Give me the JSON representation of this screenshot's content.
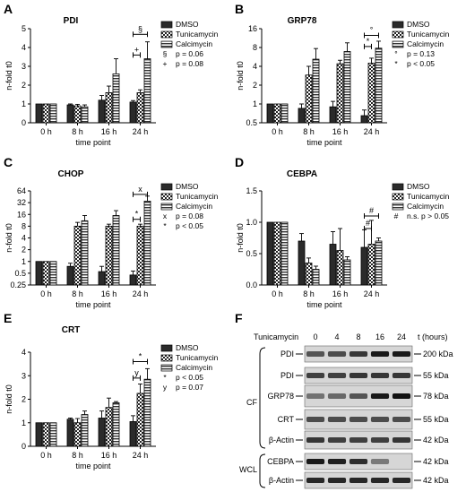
{
  "panel_letters": [
    "A",
    "B",
    "C",
    "D",
    "E",
    "F"
  ],
  "patterns": {
    "DMSO": "solid-dark",
    "Tunicamycin": "checker",
    "Calcimycin": "horizontal-stripes"
  },
  "chart_data": [
    {
      "id": "A",
      "type": "bar",
      "title": "PDI",
      "xlabel": "time point",
      "ylabel": "n-fold t0",
      "scale": "linear",
      "ylim": [
        0,
        5
      ],
      "yticks": [
        "0",
        "1",
        "2",
        "3",
        "4",
        "5"
      ],
      "categories": [
        "0 h",
        "8 h",
        "16 h",
        "24 h"
      ],
      "series": [
        {
          "name": "DMSO",
          "values": [
            1.0,
            0.95,
            1.2,
            1.1
          ],
          "errors": [
            0.02,
            0.05,
            0.25,
            0.08
          ]
        },
        {
          "name": "Tunicamycin",
          "values": [
            1.0,
            0.9,
            1.6,
            1.6
          ],
          "errors": [
            0.02,
            0.08,
            0.35,
            0.15
          ]
        },
        {
          "name": "Calcimycin",
          "values": [
            1.0,
            0.85,
            2.6,
            3.4
          ],
          "errors": [
            0.02,
            0.1,
            0.8,
            0.9
          ]
        }
      ],
      "brackets": [
        {
          "symbol": "§",
          "from": 0,
          "to": 2,
          "level": 4.7
        },
        {
          "symbol": "+",
          "from": 0,
          "to": 1,
          "level": 3.6
        }
      ],
      "notes": [
        {
          "symbol": "§",
          "text": "p = 0.06"
        },
        {
          "symbol": "+",
          "text": "p = 0.08"
        }
      ]
    },
    {
      "id": "B",
      "type": "bar",
      "title": "GRP78",
      "xlabel": "time point",
      "ylabel": "n-fold t0",
      "scale": "log2",
      "ylim": [
        0.5,
        16
      ],
      "yticks": [
        "0.5",
        "1",
        "2",
        "4",
        "8",
        "16"
      ],
      "categories": [
        "0 h",
        "8 h",
        "16 h",
        "24 h"
      ],
      "series": [
        {
          "name": "DMSO",
          "values": [
            1.0,
            0.85,
            0.9,
            0.65
          ],
          "errors": [
            0.02,
            0.15,
            0.2,
            0.15
          ]
        },
        {
          "name": "Tunicamycin",
          "values": [
            1.0,
            2.9,
            4.4,
            4.5
          ],
          "errors": [
            0.02,
            1.1,
            0.6,
            0.9
          ]
        },
        {
          "name": "Calcimycin",
          "values": [
            1.0,
            5.2,
            6.9,
            7.8
          ],
          "errors": [
            0.02,
            2.5,
            2.6,
            2.3
          ]
        }
      ],
      "brackets": [
        {
          "symbol": "°",
          "from": 0,
          "to": 2,
          "level": 12.5
        },
        {
          "symbol": "*",
          "from": 0,
          "to": 1,
          "level": 8.3
        }
      ],
      "notes": [
        {
          "symbol": "°",
          "text": "p = 0.13"
        },
        {
          "symbol": "*",
          "text": "p < 0.05"
        }
      ]
    },
    {
      "id": "C",
      "type": "bar",
      "title": "CHOP",
      "xlabel": "time point",
      "ylabel": "n-fold t0",
      "scale": "log2",
      "ylim": [
        0.25,
        64
      ],
      "yticks": [
        "0.25",
        "0.5",
        "1",
        "2",
        "4",
        "8",
        "16",
        "32",
        "64"
      ],
      "categories": [
        "0 h",
        "8 h",
        "16 h",
        "24 h"
      ],
      "series": [
        {
          "name": "DMSO",
          "values": [
            1.0,
            0.75,
            0.55,
            0.45
          ],
          "errors": [
            0.02,
            0.15,
            0.2,
            0.12
          ]
        },
        {
          "name": "Tunicamycin",
          "values": [
            1.0,
            8.0,
            8.0,
            8.0
          ],
          "errors": [
            0.02,
            2.0,
            1.0,
            1.0
          ]
        },
        {
          "name": "Calcimycin",
          "values": [
            1.0,
            11.0,
            15.0,
            35.0
          ],
          "errors": [
            0.02,
            4.0,
            5.0,
            12.0
          ]
        }
      ],
      "brackets": [
        {
          "symbol": "x",
          "from": 0,
          "to": 2,
          "level": 52
        },
        {
          "symbol": "*",
          "from": 0,
          "to": 1,
          "level": 12
        }
      ],
      "notes": [
        {
          "symbol": "x",
          "text": "p = 0.08"
        },
        {
          "symbol": "*",
          "text": "p < 0.05"
        }
      ]
    },
    {
      "id": "D",
      "type": "bar",
      "title": "CEBPA",
      "xlabel": "time point",
      "ylabel": "n-fold t0",
      "scale": "linear",
      "ylim": [
        0,
        1.5
      ],
      "yticks": [
        "0.0",
        "0.5",
        "1.0",
        "1.5"
      ],
      "categories": [
        "0 h",
        "8 h",
        "16 h",
        "24 h"
      ],
      "series": [
        {
          "name": "DMSO",
          "values": [
            1.0,
            0.7,
            0.65,
            0.6
          ],
          "errors": [
            0.02,
            0.12,
            0.2,
            0.28
          ]
        },
        {
          "name": "Tunicamycin",
          "values": [
            1.0,
            0.35,
            0.55,
            0.65
          ],
          "errors": [
            0.02,
            0.08,
            0.35,
            0.38
          ]
        },
        {
          "name": "Calcimycin",
          "values": [
            1.0,
            0.25,
            0.4,
            0.7
          ],
          "errors": [
            0.02,
            0.05,
            0.05,
            0.05
          ]
        }
      ],
      "brackets": [
        {
          "symbol": "#",
          "from": 0,
          "to": 2,
          "level": 1.1
        },
        {
          "symbol": "#",
          "from": 0,
          "to": 1,
          "level": 0.9
        }
      ],
      "notes": [
        {
          "symbol": "#",
          "text": "n.s. p > 0.05"
        }
      ]
    },
    {
      "id": "E",
      "type": "bar",
      "title": "CRT",
      "xlabel": "time point",
      "ylabel": "n-fold t0",
      "scale": "linear",
      "ylim": [
        0,
        4
      ],
      "yticks": [
        "0",
        "1",
        "2",
        "3",
        "4"
      ],
      "categories": [
        "0 h",
        "8 h",
        "16 h",
        "24 h"
      ],
      "series": [
        {
          "name": "DMSO",
          "values": [
            1.0,
            1.15,
            1.2,
            1.05
          ],
          "errors": [
            0.02,
            0.05,
            0.3,
            0.25
          ]
        },
        {
          "name": "Tunicamycin",
          "values": [
            1.0,
            1.0,
            1.65,
            2.25
          ],
          "errors": [
            0.02,
            0.18,
            0.4,
            0.4
          ]
        },
        {
          "name": "Calcimycin",
          "values": [
            1.0,
            1.35,
            1.85,
            2.85
          ],
          "errors": [
            0.02,
            0.15,
            0.05,
            0.45
          ]
        }
      ],
      "brackets": [
        {
          "symbol": "*",
          "from": 0,
          "to": 2,
          "level": 3.6
        },
        {
          "symbol": "y",
          "from": 0,
          "to": 1,
          "level": 2.9
        }
      ],
      "notes": [
        {
          "symbol": "*",
          "text": "p < 0.05"
        },
        {
          "symbol": "y",
          "text": "p = 0.07"
        }
      ]
    }
  ],
  "western_blot": {
    "id": "F",
    "header_label": "Tunicamycin",
    "lane_labels": [
      "0",
      "4",
      "8",
      "16",
      "24"
    ],
    "time_label": "t (hours)",
    "groups": [
      {
        "label": "CF",
        "rows": 5
      },
      {
        "label": "WCL",
        "rows": 2
      }
    ],
    "bands": [
      {
        "label": "PDI",
        "size": "200 kDa",
        "intensity": [
          0.55,
          0.6,
          0.75,
          0.95,
          0.95
        ]
      },
      {
        "label": "PDI",
        "size": "55 kDa",
        "intensity": [
          0.7,
          0.7,
          0.75,
          0.75,
          0.75
        ]
      },
      {
        "label": "GRP78",
        "size": "78 kDa",
        "intensity": [
          0.35,
          0.4,
          0.55,
          0.95,
          1.0
        ]
      },
      {
        "label": "CRT",
        "size": "55 kDa",
        "intensity": [
          0.6,
          0.6,
          0.6,
          0.6,
          0.6
        ]
      },
      {
        "label": "β-Actin",
        "size": "42 kDa",
        "intensity": [
          0.75,
          0.7,
          0.7,
          0.7,
          0.75
        ]
      },
      {
        "label": "CEBPA",
        "size": "42 kDa",
        "intensity": [
          0.95,
          0.9,
          0.8,
          0.3,
          0.0
        ]
      },
      {
        "label": "β-Actin",
        "size": "42 kDa",
        "intensity": [
          0.85,
          0.85,
          0.85,
          0.85,
          0.85
        ]
      }
    ]
  }
}
